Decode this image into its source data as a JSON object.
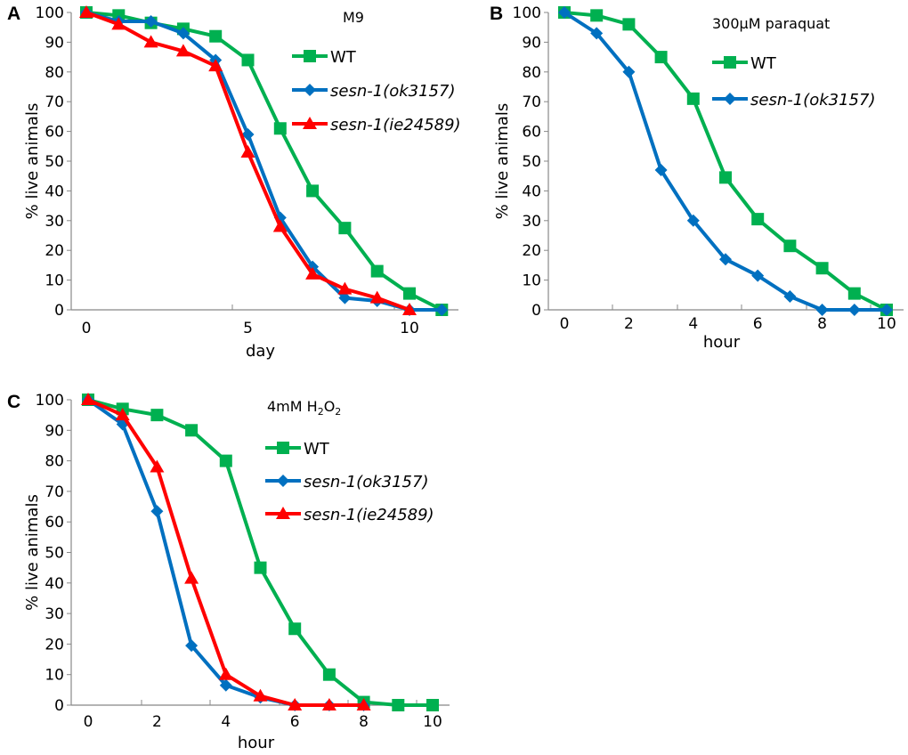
{
  "colors": {
    "WT": "#00b050",
    "ok3157": "#0070c0",
    "ie24589": "#ff0000",
    "axis": "#888888"
  },
  "chart_data": [
    {
      "panel": "A",
      "type": "line",
      "title": "M9",
      "xlabel": "day",
      "ylabel": "% live animals",
      "xlim": [
        0,
        11
      ],
      "ylim": [
        0,
        100
      ],
      "xticks": [
        0,
        5,
        10
      ],
      "yticks": [
        0,
        10,
        20,
        30,
        40,
        50,
        60,
        70,
        80,
        90,
        100
      ],
      "grid": false,
      "legend": "top-right",
      "series": [
        {
          "name": "WT",
          "key": "WT",
          "marker": "square",
          "x": [
            0,
            1,
            2,
            3,
            4,
            5,
            6,
            7,
            8,
            9,
            10,
            11
          ],
          "values": [
            100,
            99,
            96.5,
            94.5,
            92,
            84,
            61,
            40,
            27.5,
            13,
            5.5,
            0
          ]
        },
        {
          "name": "sesn-1(ok3157)",
          "key": "ok3157",
          "marker": "diamond",
          "x": [
            0,
            1,
            2,
            3,
            4,
            5,
            6,
            7,
            8,
            9,
            10,
            11
          ],
          "values": [
            100,
            97,
            97,
            93,
            84,
            59,
            31,
            14.5,
            4,
            3,
            0,
            0
          ]
        },
        {
          "name": "sesn-1(ie24589)",
          "key": "ie24589",
          "marker": "triangle",
          "x": [
            0,
            1,
            2,
            3,
            4,
            5,
            6,
            7,
            8,
            9,
            10
          ],
          "values": [
            100,
            96,
            90,
            87,
            82,
            53,
            28,
            12,
            7,
            4,
            0
          ]
        }
      ]
    },
    {
      "panel": "B",
      "type": "line",
      "title": "300µM paraquat",
      "xlabel": "hour",
      "ylabel": "% live animals",
      "xlim": [
        0,
        10
      ],
      "ylim": [
        0,
        100
      ],
      "xticks": [
        0,
        2,
        4,
        6,
        8,
        10
      ],
      "yticks": [
        0,
        10,
        20,
        30,
        40,
        50,
        60,
        70,
        80,
        90,
        100
      ],
      "grid": false,
      "legend": "top-right",
      "series": [
        {
          "name": "WT",
          "key": "WT",
          "marker": "square",
          "x": [
            0,
            1,
            2,
            3,
            4,
            5,
            6,
            7,
            8,
            9,
            10
          ],
          "values": [
            100,
            99,
            96,
            85,
            71,
            44.5,
            30.5,
            21.5,
            14,
            5.5,
            0
          ]
        },
        {
          "name": "sesn-1(ok3157)",
          "key": "ok3157",
          "marker": "diamond",
          "x": [
            0,
            1,
            2,
            3,
            4,
            5,
            6,
            7,
            8,
            9,
            10
          ],
          "values": [
            100,
            93,
            80,
            47,
            30,
            17,
            11.5,
            4.5,
            0,
            0,
            0
          ]
        }
      ]
    },
    {
      "panel": "C",
      "type": "line",
      "title": "4mM H2O2",
      "title_main": "4mM H",
      "title_sub1": "2",
      "title_mid": "O",
      "title_sub2": "2",
      "xlabel": "hour",
      "ylabel": "% live animals",
      "xlim": [
        0,
        10
      ],
      "ylim": [
        0,
        100
      ],
      "xticks": [
        0,
        2,
        4,
        6,
        8,
        10
      ],
      "yticks": [
        0,
        10,
        20,
        30,
        40,
        50,
        60,
        70,
        80,
        90,
        100
      ],
      "grid": false,
      "legend": "top-right",
      "series": [
        {
          "name": "WT",
          "key": "WT",
          "marker": "square",
          "x": [
            0,
            1,
            2,
            3,
            4,
            5,
            6,
            7,
            8,
            9,
            10
          ],
          "values": [
            100,
            97,
            95,
            90,
            80,
            45,
            25,
            10,
            1,
            0,
            0
          ]
        },
        {
          "name": "sesn-1(ok3157)",
          "key": "ok3157",
          "marker": "diamond",
          "x": [
            0,
            1,
            2,
            3,
            4,
            5,
            6,
            7,
            8
          ],
          "values": [
            100,
            92,
            63.5,
            19.5,
            6.5,
            2.5,
            0,
            0,
            0
          ]
        },
        {
          "name": "sesn-1(ie24589)",
          "key": "ie24589",
          "marker": "triangle",
          "x": [
            0,
            1,
            2,
            3,
            4,
            5,
            6,
            7,
            8
          ],
          "values": [
            100,
            95,
            78,
            41.5,
            10,
            3,
            0,
            0,
            0
          ]
        }
      ]
    }
  ]
}
